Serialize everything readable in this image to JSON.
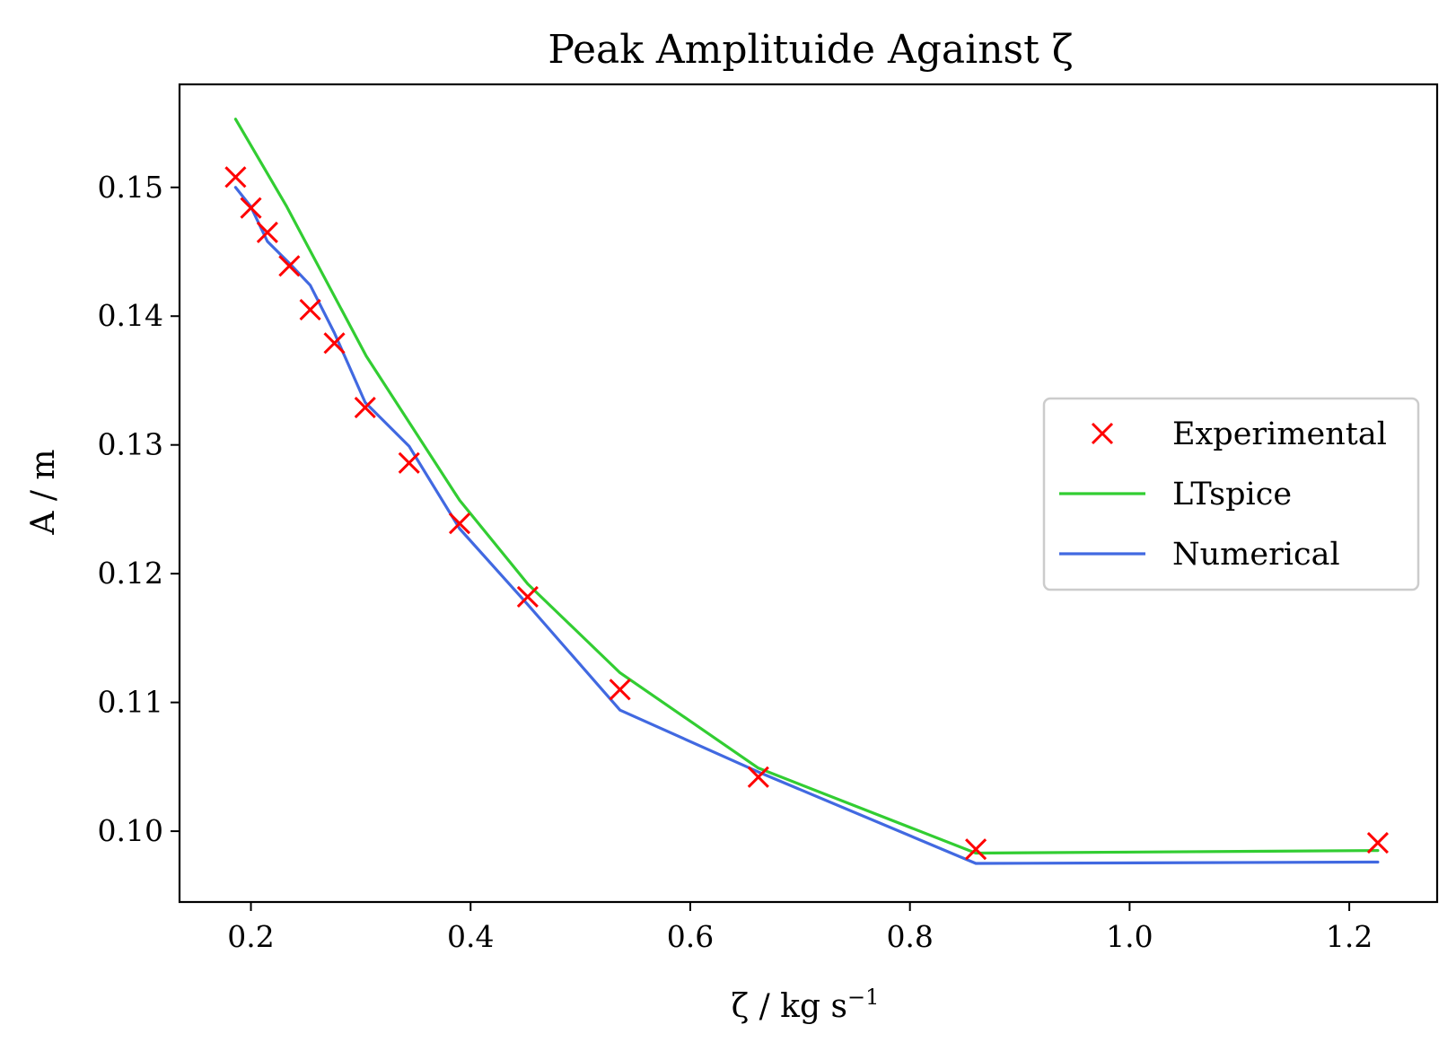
{
  "chart_data": {
    "type": "line",
    "title": "Peak Amplituide Against ζ",
    "xlabel": "ζ / kg s",
    "xlabel_sup": "−1",
    "ylabel": "A / m",
    "xlim": [
      0.135,
      1.28
    ],
    "ylim": [
      0.0945,
      0.158
    ],
    "xticks": [
      0.2,
      0.4,
      0.6,
      0.8,
      1.0,
      1.2
    ],
    "xtick_labels": [
      "0.2",
      "0.4",
      "0.6",
      "0.8",
      "1.0",
      "1.2"
    ],
    "yticks": [
      0.1,
      0.11,
      0.12,
      0.13,
      0.14,
      0.15
    ],
    "ytick_labels": [
      "0.10",
      "0.11",
      "0.12",
      "0.13",
      "0.14",
      "0.15"
    ],
    "grid": false,
    "legend_position": "center-right",
    "series": [
      {
        "name": "Experimental",
        "kind": "marker",
        "marker": "x",
        "color": "#ff0000",
        "x": [
          0.186,
          0.2,
          0.215,
          0.235,
          0.254,
          0.276,
          0.304,
          0.344,
          0.39,
          0.452,
          0.536,
          0.662,
          0.86,
          1.226
        ],
        "y": [
          0.1508,
          0.1484,
          0.1465,
          0.1439,
          0.1405,
          0.1379,
          0.1329,
          0.1286,
          0.1239,
          0.1182,
          0.111,
          0.1042,
          0.0986,
          0.0991
        ]
      },
      {
        "name": "LTspice",
        "kind": "line",
        "color": "#32cd32",
        "x": [
          0.186,
          0.232,
          0.305,
          0.39,
          0.452,
          0.536,
          0.662,
          0.86,
          1.226
        ],
        "y": [
          0.1553,
          0.1486,
          0.1369,
          0.1257,
          0.1192,
          0.1123,
          0.1049,
          0.0983,
          0.0985
        ]
      },
      {
        "name": "Numerical",
        "kind": "line",
        "color": "#4169e1",
        "x": [
          0.186,
          0.2,
          0.215,
          0.235,
          0.254,
          0.276,
          0.304,
          0.344,
          0.39,
          0.452,
          0.536,
          0.662,
          0.86,
          1.226
        ],
        "y": [
          0.15,
          0.1485,
          0.1458,
          0.1441,
          0.1424,
          0.1387,
          0.1333,
          0.1299,
          0.1235,
          0.1176,
          0.1094,
          0.1046,
          0.0975,
          0.0976
        ]
      }
    ]
  }
}
